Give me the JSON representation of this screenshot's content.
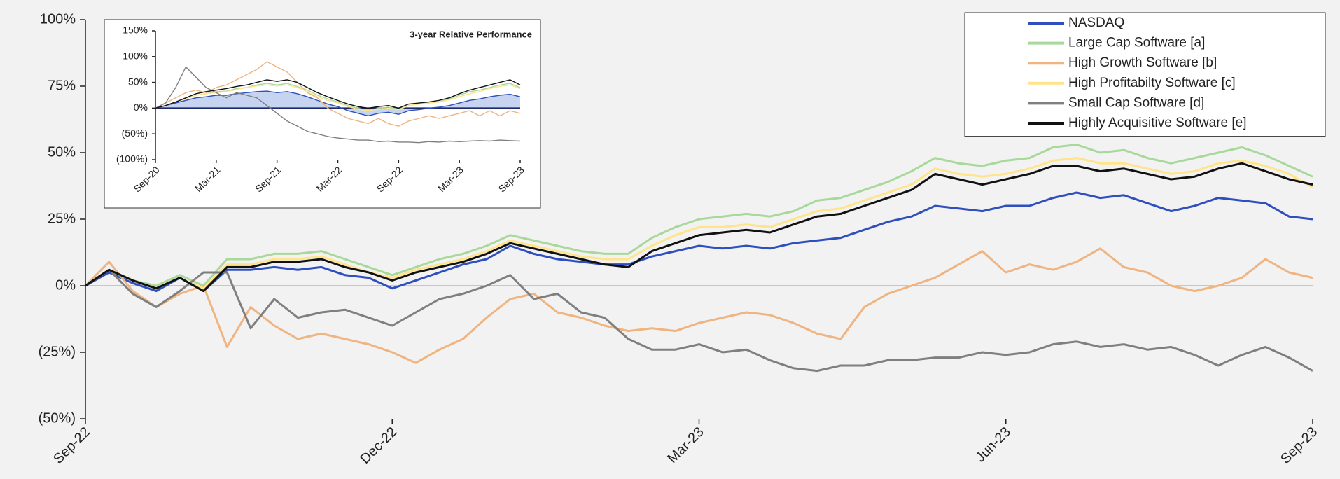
{
  "chart_data": [
    {
      "type": "line",
      "categories": [
        "Sep-22",
        null,
        null,
        null,
        null,
        null,
        null,
        null,
        null,
        null,
        null,
        null,
        null,
        "Dec-22",
        null,
        null,
        null,
        null,
        null,
        null,
        null,
        null,
        null,
        null,
        null,
        null,
        "Mar-23",
        null,
        null,
        null,
        null,
        null,
        null,
        null,
        null,
        null,
        null,
        null,
        null,
        "Jun-23",
        null,
        null,
        null,
        null,
        null,
        null,
        null,
        null,
        null,
        null,
        null,
        null,
        "Sep-23"
      ],
      "ylim": [
        -50,
        100
      ],
      "yticks": [
        {
          "value": -50,
          "label": "(50%)"
        },
        {
          "value": -25,
          "label": "(25%)"
        },
        {
          "value": 0,
          "label": "0%"
        },
        {
          "value": 25,
          "label": "25%"
        },
        {
          "value": 50,
          "label": "50%"
        },
        {
          "value": 75,
          "label": "75%"
        },
        {
          "value": 100,
          "label": "100%"
        }
      ],
      "legend": "upper right",
      "series": [
        {
          "name": "NASDAQ",
          "color": "#2f4fbf",
          "values": [
            0,
            5,
            1,
            -2,
            3,
            -2,
            6,
            6,
            7,
            6,
            7,
            4,
            3,
            -1,
            2,
            5,
            8,
            10,
            15,
            12,
            10,
            9,
            8,
            8,
            11,
            13,
            15,
            14,
            15,
            14,
            16,
            17,
            18,
            21,
            24,
            26,
            30,
            29,
            28,
            30,
            30,
            33,
            35,
            33,
            34,
            31,
            28,
            30,
            33,
            32,
            31,
            26,
            25
          ]
        },
        {
          "name": "Large Cap Software [a]",
          "color": "#a8d99b",
          "values": [
            0,
            6,
            2,
            0,
            4,
            0,
            10,
            10,
            12,
            12,
            13,
            10,
            7,
            4,
            7,
            10,
            12,
            15,
            19,
            17,
            15,
            13,
            12,
            12,
            18,
            22,
            25,
            26,
            27,
            26,
            28,
            32,
            33,
            36,
            39,
            43,
            48,
            46,
            45,
            47,
            48,
            52,
            53,
            50,
            51,
            48,
            46,
            48,
            50,
            52,
            49,
            45,
            41
          ]
        },
        {
          "name": "High Growth Software [b]",
          "color": "#efb480",
          "values": [
            0,
            9,
            -2,
            -8,
            -3,
            0,
            -23,
            -8,
            -15,
            -20,
            -18,
            -20,
            -22,
            -25,
            -29,
            -24,
            -20,
            -12,
            -5,
            -3,
            -10,
            -12,
            -15,
            -17,
            -16,
            -17,
            -14,
            -12,
            -10,
            -11,
            -14,
            -18,
            -20,
            -8,
            -3,
            0,
            3,
            8,
            13,
            5,
            8,
            6,
            9,
            14,
            7,
            5,
            0,
            -2,
            0,
            3,
            10,
            5,
            3
          ]
        },
        {
          "name": "High Profitabilty Software [c]",
          "color": "#ffe48a",
          "values": [
            0,
            6,
            2,
            -1,
            3,
            -1,
            8,
            8,
            10,
            10,
            11,
            8,
            5,
            3,
            6,
            8,
            10,
            13,
            17,
            15,
            13,
            11,
            10,
            10,
            15,
            19,
            22,
            22,
            23,
            22,
            25,
            28,
            29,
            32,
            35,
            38,
            44,
            42,
            41,
            42,
            44,
            47,
            48,
            46,
            46,
            44,
            42,
            43,
            46,
            47,
            45,
            42,
            37
          ]
        },
        {
          "name": "Small Cap Software [d]",
          "color": "#7f7f7f",
          "values": [
            0,
            6,
            -3,
            -8,
            -2,
            5,
            5,
            -16,
            -5,
            -12,
            -10,
            -9,
            -12,
            -15,
            -10,
            -5,
            -3,
            0,
            4,
            -5,
            -3,
            -10,
            -12,
            -20,
            -24,
            -24,
            -22,
            -25,
            -24,
            -28,
            -31,
            -32,
            -30,
            -30,
            -28,
            -28,
            -27,
            -27,
            -25,
            -26,
            -25,
            -22,
            -21,
            -23,
            -22,
            -24,
            -23,
            -26,
            -30,
            -26,
            -23,
            -27,
            -32
          ]
        },
        {
          "name": "Highly Acquisitive Software [e]",
          "color": "#111111",
          "values": [
            0,
            6,
            2,
            -1,
            3,
            -2,
            7,
            7,
            9,
            9,
            10,
            7,
            5,
            2,
            5,
            7,
            9,
            12,
            16,
            14,
            12,
            10,
            8,
            7,
            13,
            16,
            19,
            20,
            21,
            20,
            23,
            26,
            27,
            30,
            33,
            36,
            42,
            40,
            38,
            40,
            42,
            45,
            45,
            43,
            44,
            42,
            40,
            41,
            44,
            46,
            43,
            40,
            38
          ]
        }
      ]
    },
    {
      "type": "line",
      "title": "3-year Relative Performance",
      "categories": [
        "Sep-20",
        null,
        null,
        null,
        null,
        null,
        "Mar-21",
        null,
        null,
        null,
        null,
        null,
        "Sep-21",
        null,
        null,
        null,
        null,
        null,
        "Mar-22",
        null,
        null,
        null,
        null,
        null,
        "Sep-22",
        null,
        null,
        null,
        null,
        null,
        "Mar-23",
        null,
        null,
        null,
        null,
        null,
        "Sep-23"
      ],
      "ylim": [
        -100,
        150
      ],
      "yticks": [
        {
          "value": -100,
          "label": "(100%)"
        },
        {
          "value": -50,
          "label": "(50%)"
        },
        {
          "value": 0,
          "label": "0%"
        },
        {
          "value": 50,
          "label": "50%"
        },
        {
          "value": 100,
          "label": "100%"
        },
        {
          "value": 150,
          "label": "150%"
        }
      ],
      "series": [
        {
          "name": "NASDAQ",
          "color": "#2f4fbf",
          "area": true,
          "values": [
            0,
            5,
            10,
            15,
            20,
            22,
            25,
            25,
            28,
            30,
            32,
            33,
            30,
            32,
            28,
            22,
            15,
            8,
            3,
            -5,
            -10,
            -15,
            -10,
            -8,
            -12,
            -5,
            -3,
            0,
            2,
            5,
            10,
            15,
            18,
            22,
            25,
            27,
            22
          ]
        },
        {
          "name": "Large Cap Software [a]",
          "color": "#a8d99b",
          "values": [
            0,
            5,
            12,
            18,
            25,
            28,
            32,
            33,
            38,
            40,
            45,
            48,
            45,
            48,
            42,
            35,
            25,
            18,
            12,
            5,
            0,
            -5,
            0,
            2,
            -2,
            5,
            8,
            10,
            12,
            18,
            25,
            32,
            35,
            40,
            45,
            48,
            40
          ]
        },
        {
          "name": "High Growth Software [b]",
          "color": "#efb480",
          "values": [
            0,
            10,
            20,
            30,
            35,
            30,
            40,
            45,
            55,
            65,
            75,
            90,
            80,
            70,
            50,
            30,
            20,
            0,
            -10,
            -20,
            -25,
            -30,
            -20,
            -30,
            -35,
            -25,
            -20,
            -15,
            -20,
            -15,
            -10,
            -5,
            -15,
            -5,
            -15,
            -5,
            -10
          ]
        },
        {
          "name": "High Profitabilty Software [c]",
          "color": "#ffe48a",
          "values": [
            0,
            5,
            12,
            18,
            25,
            28,
            30,
            32,
            36,
            40,
            43,
            45,
            43,
            45,
            40,
            32,
            22,
            15,
            10,
            3,
            -2,
            -5,
            -2,
            0,
            -3,
            5,
            8,
            10,
            12,
            16,
            22,
            28,
            32,
            38,
            42,
            45,
            38
          ]
        },
        {
          "name": "Small Cap Software [d]",
          "color": "#7f7f7f",
          "values": [
            0,
            10,
            40,
            80,
            60,
            40,
            30,
            20,
            30,
            25,
            20,
            5,
            -10,
            -25,
            -35,
            -45,
            -50,
            -55,
            -58,
            -60,
            -62,
            -62,
            -65,
            -64,
            -66,
            -66,
            -67,
            -65,
            -66,
            -64,
            -65,
            -64,
            -63,
            -64,
            -62,
            -63,
            -64
          ]
        },
        {
          "name": "Highly Acquisitive Software [e]",
          "color": "#111111",
          "values": [
            0,
            5,
            12,
            20,
            28,
            32,
            35,
            38,
            42,
            45,
            50,
            55,
            52,
            55,
            50,
            40,
            30,
            22,
            15,
            8,
            3,
            0,
            3,
            5,
            0,
            8,
            10,
            12,
            15,
            20,
            28,
            35,
            40,
            45,
            50,
            55,
            45
          ]
        }
      ]
    }
  ]
}
